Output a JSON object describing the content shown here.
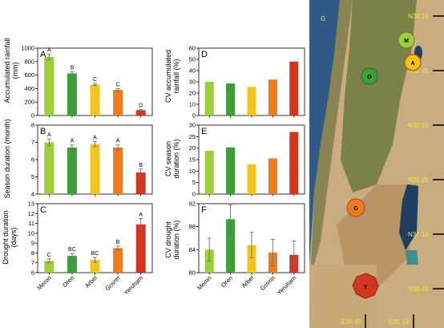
{
  "colors": {
    "Meron": "#9bcf3b",
    "Oren": "#3aa037",
    "Arbel": "#f3c41b",
    "Govrin": "#f07a1e",
    "Yeruham": "#d3351f",
    "error": "#6e6e6e",
    "map_label": "#f2ea2a"
  },
  "chart_data": [
    {
      "type": "bar",
      "panel": "A",
      "categories": [
        "Meron",
        "Oren",
        "Arbel",
        "Govrin",
        "Yeruham"
      ],
      "values": [
        870,
        625,
        460,
        380,
        80
      ],
      "errors": [
        40,
        25,
        15,
        20,
        8
      ],
      "letters": [
        "A",
        "B",
        "C",
        "C",
        "D"
      ],
      "ylabel": "Accumulated rainfall (mm)",
      "ylim": [
        0,
        1000
      ],
      "yticks": [
        "0",
        "200",
        "400",
        "600",
        "800",
        "1000"
      ],
      "yticks_v": [
        0,
        200,
        400,
        600,
        800,
        1000
      ]
    },
    {
      "type": "bar",
      "panel": "B",
      "categories": [
        "Meron",
        "Oren",
        "Arbel",
        "Govrin",
        "Yeruham"
      ],
      "values": [
        7.0,
        6.7,
        6.9,
        6.7,
        5.25
      ],
      "errors": [
        0.2,
        0.15,
        0.15,
        0.15,
        0.2
      ],
      "letters": [
        "A",
        "A",
        "A",
        "A",
        "B"
      ],
      "ylabel": "Season duration (month)",
      "ylim": [
        4,
        8
      ],
      "yticks": [
        "4",
        "5",
        "6",
        "7",
        "8"
      ],
      "yticks_v": [
        4,
        5,
        6,
        7,
        8
      ]
    },
    {
      "type": "bar",
      "panel": "C",
      "categories": [
        "Meron",
        "Oren",
        "Arbel",
        "Govrin",
        "Yeruham"
      ],
      "values": [
        7.2,
        7.7,
        7.3,
        8.5,
        10.9
      ],
      "errors": [
        0.2,
        0.25,
        0.25,
        0.2,
        0.6
      ],
      "letters": [
        "C",
        "BC",
        "BC",
        "B",
        "A"
      ],
      "ylabel": "Drought duration (days)",
      "ylim": [
        6,
        13
      ],
      "yticks": [
        "6",
        "7",
        "8",
        "9",
        "10",
        "11",
        "12",
        "13"
      ],
      "yticks_v": [
        6,
        7,
        8,
        9,
        10,
        11,
        12,
        13
      ]
    },
    {
      "type": "bar",
      "panel": "D",
      "categories": [
        "Meron",
        "Oren",
        "Arbel",
        "Govrin",
        "Yeruham"
      ],
      "values": [
        30,
        28.5,
        25.5,
        32,
        48
      ],
      "errors": [],
      "letters": [],
      "ylabel": "CV accumulated rainfall (%)",
      "ylim": [
        0,
        60
      ],
      "yticks": [
        "0",
        "10",
        "20",
        "30",
        "40",
        "50",
        "60"
      ],
      "yticks_v": [
        0,
        10,
        20,
        30,
        40,
        50,
        60
      ]
    },
    {
      "type": "bar",
      "panel": "E",
      "categories": [
        "Meron",
        "Oren",
        "Arbel",
        "Govrin",
        "Yeruham"
      ],
      "values": [
        18.8,
        20.3,
        13,
        15.5,
        27
      ],
      "errors": [],
      "letters": [],
      "ylabel": "CV season duration (%)",
      "ylim": [
        0,
        30
      ],
      "yticks": [
        "0",
        "5",
        "10",
        "15",
        "20",
        "25",
        "30"
      ],
      "yticks_v": [
        0,
        5,
        10,
        15,
        20,
        25,
        30
      ]
    },
    {
      "type": "bar",
      "panel": "F",
      "categories": [
        "Meron",
        "Oren",
        "Arbel",
        "Govrin",
        "Yeruham"
      ],
      "values": [
        84,
        89.3,
        84.8,
        83.5,
        83.1
      ],
      "errors": [
        2,
        2.5,
        2.2,
        2.3,
        2.4
      ],
      "letters": [],
      "ylabel": "CV drought duration (%)",
      "ylim": [
        80,
        92
      ],
      "yticks": [
        "80",
        "84",
        "88",
        "92"
      ],
      "yticks_v": [
        80,
        84,
        88,
        92
      ]
    }
  ],
  "map": {
    "corner_label": "G",
    "lat_labels": [
      "N33 15",
      "N32 45",
      "N32 15",
      "N31 45",
      "N31 15",
      "N30 45"
    ],
    "lon_labels": [
      "E34 45",
      "E35 15"
    ],
    "sites": [
      {
        "code": "M",
        "color": "#9bcf3b"
      },
      {
        "code": "A",
        "color": "#f3c41b"
      },
      {
        "code": "O",
        "color": "#3aa037"
      },
      {
        "code": "G",
        "color": "#f07a1e"
      },
      {
        "code": "Y",
        "color": "#d3351f"
      }
    ]
  }
}
